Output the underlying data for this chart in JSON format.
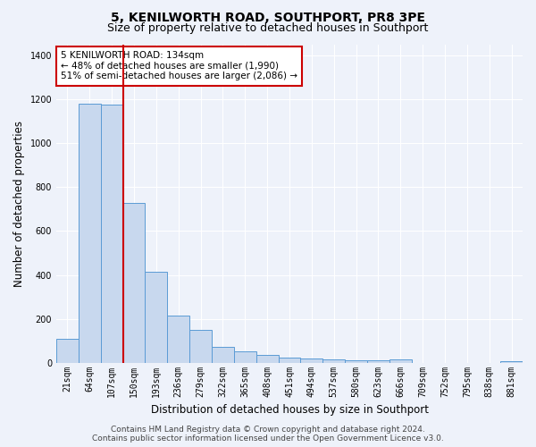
{
  "title": "5, KENILWORTH ROAD, SOUTHPORT, PR8 3PE",
  "subtitle": "Size of property relative to detached houses in Southport",
  "xlabel": "Distribution of detached houses by size in Southport",
  "ylabel": "Number of detached properties",
  "categories": [
    "21sqm",
    "64sqm",
    "107sqm",
    "150sqm",
    "193sqm",
    "236sqm",
    "279sqm",
    "322sqm",
    "365sqm",
    "408sqm",
    "451sqm",
    "494sqm",
    "537sqm",
    "580sqm",
    "623sqm",
    "666sqm",
    "709sqm",
    "752sqm",
    "795sqm",
    "838sqm",
    "881sqm"
  ],
  "values": [
    107,
    1180,
    1175,
    730,
    415,
    215,
    150,
    72,
    50,
    35,
    25,
    20,
    15,
    10,
    10,
    13,
    0,
    0,
    0,
    0,
    5
  ],
  "bar_color": "#c8d8ee",
  "bar_edge_color": "#5b9bd5",
  "red_line_x": 2.5,
  "annotation_text": "5 KENILWORTH ROAD: 134sqm\n← 48% of detached houses are smaller (1,990)\n51% of semi-detached houses are larger (2,086) →",
  "annotation_box_facecolor": "#ffffff",
  "annotation_box_edgecolor": "#cc0000",
  "footer_line1": "Contains HM Land Registry data © Crown copyright and database right 2024.",
  "footer_line2": "Contains public sector information licensed under the Open Government Licence v3.0.",
  "background_color": "#eef2fa",
  "plot_background_color": "#eef2fa",
  "grid_color": "#ffffff",
  "ylim": [
    0,
    1450
  ],
  "yticks": [
    0,
    200,
    400,
    600,
    800,
    1000,
    1200,
    1400
  ],
  "title_fontsize": 10,
  "subtitle_fontsize": 9,
  "axis_label_fontsize": 8.5,
  "tick_fontsize": 7,
  "annotation_fontsize": 7.5,
  "footer_fontsize": 6.5
}
